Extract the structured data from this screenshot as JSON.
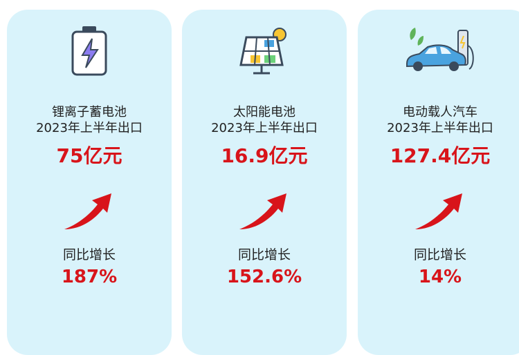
{
  "cards": [
    {
      "title": "锂离子蓄电池",
      "subtitle": "2023年上半年出口",
      "value": "75亿元",
      "growth_label": "同比增长",
      "growth": "187%"
    },
    {
      "title": "太阳能电池",
      "subtitle": "2023年上半年出口",
      "value": "16.9亿元",
      "growth_label": "同比增长",
      "growth": "152.6%"
    },
    {
      "title": "电动载人汽车",
      "subtitle": "2023年上半年出口",
      "value": "127.4亿元",
      "growth_label": "同比增长",
      "growth": "14%"
    }
  ]
}
